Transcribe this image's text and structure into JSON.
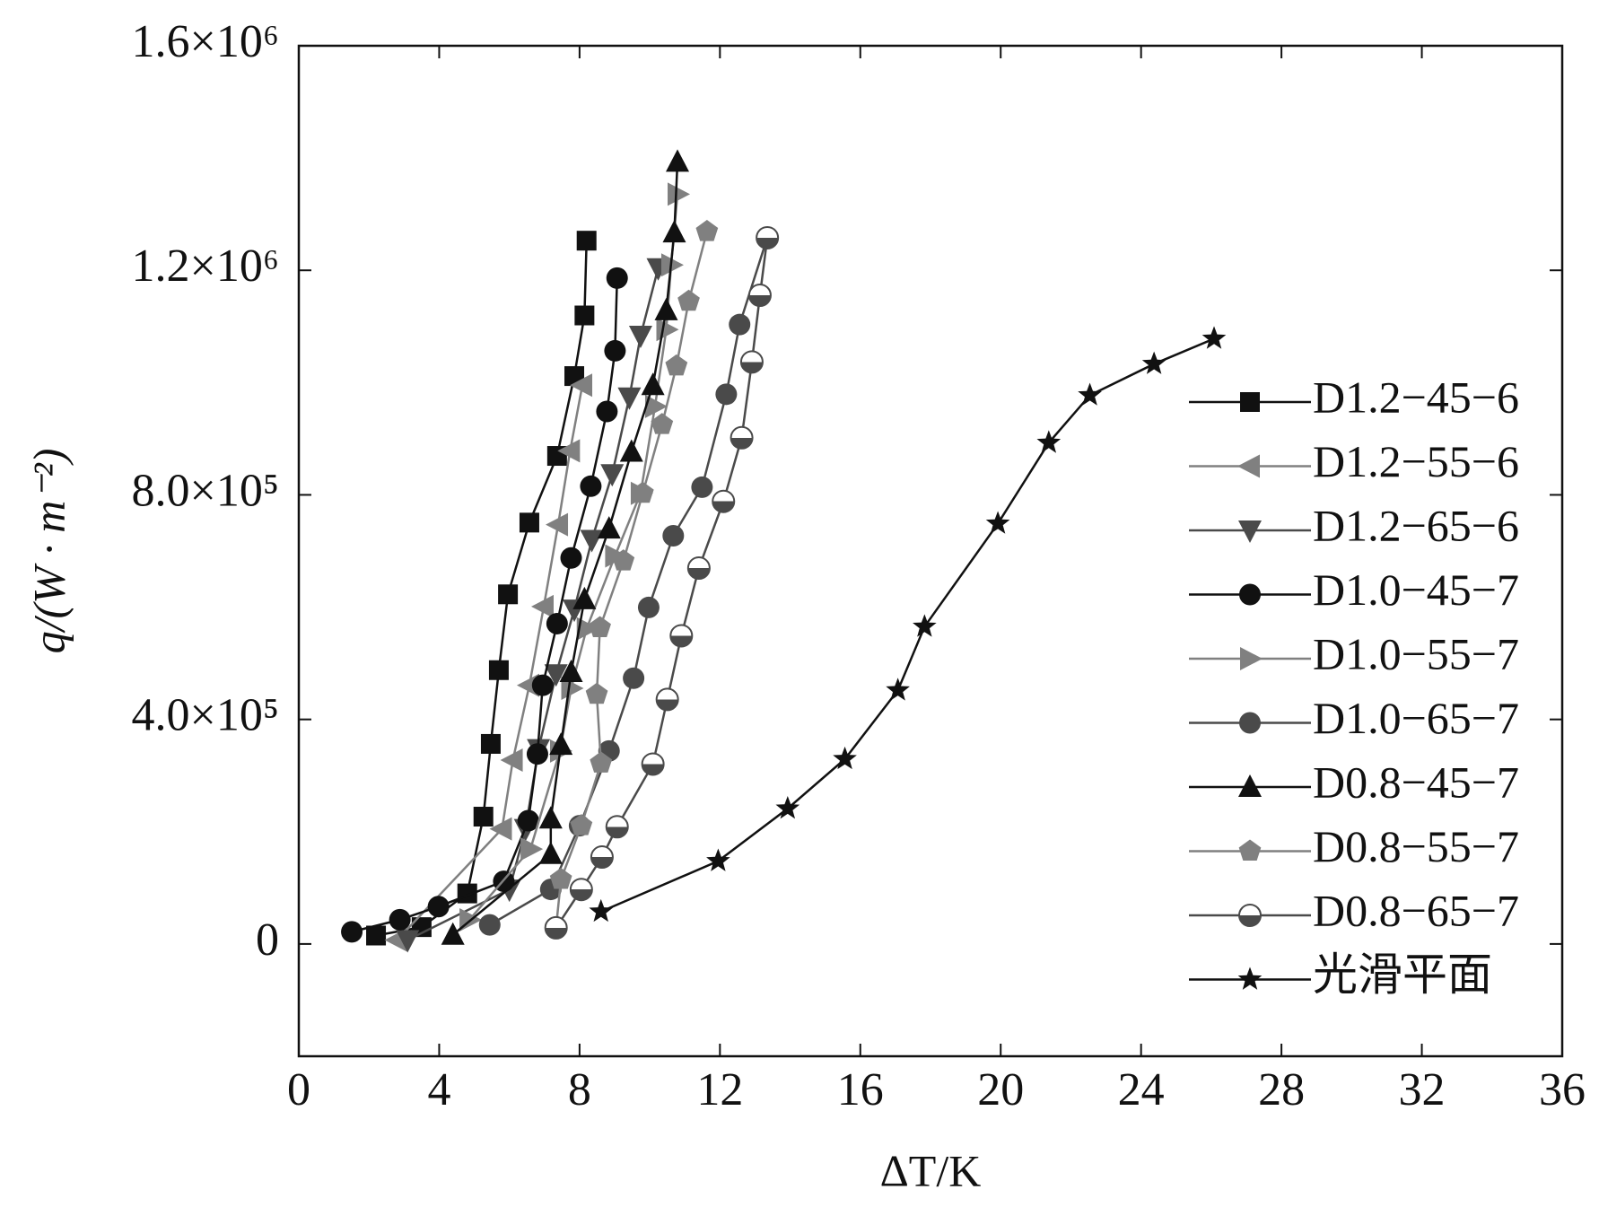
{
  "chart_data": {
    "type": "line",
    "x_label": "ΔT/K",
    "y_label": "q/(W · m⁻²)",
    "xlim": [
      0,
      36
    ],
    "xticks": [
      0,
      4,
      8,
      12,
      16,
      20,
      24,
      28,
      32,
      36
    ],
    "ylim": [
      -200000,
      1600000
    ],
    "yticks": [
      0,
      {
        "value": 400000,
        "label": "4.0×10⁵"
      },
      {
        "value": 800000,
        "label": "8.0×10⁵"
      },
      {
        "value": 1200000,
        "label": "1.2×10⁶"
      },
      {
        "value": 1600000,
        "label": "1.6×10⁶"
      }
    ],
    "legend": "right",
    "series": [
      {
        "name": "D1.2−45−6",
        "color": "#111111",
        "marker": "square",
        "x": [
          2.2,
          3.5,
          4.8,
          5.26,
          5.47,
          5.7,
          5.96,
          6.57,
          7.36,
          7.85,
          8.14,
          8.2
        ],
        "values": [
          15000,
          30000,
          90000,
          226800,
          356400,
          487800,
          622800,
          750600,
          869400,
          1011600,
          1119600,
          1252800
        ]
      },
      {
        "name": "D1.2−55−6",
        "color": "#808080",
        "marker": "left",
        "x": [
          2.8,
          5.79,
          6.1,
          6.57,
          6.98,
          7.39,
          7.73,
          8.08
        ],
        "values": [
          7000,
          205000,
          327600,
          460800,
          601000,
          747000,
          878400,
          995400
        ]
      },
      {
        "name": "D1.2−65−6",
        "color": "#4a4a4a",
        "marker": "down",
        "x": [
          3.1,
          6.0,
          6.46,
          6.83,
          7.33,
          7.85,
          8.35,
          8.93,
          9.42,
          9.74,
          10.24
        ],
        "values": [
          7000,
          97200,
          205000,
          347400,
          480600,
          595800,
          720000,
          837000,
          973800,
          1083600,
          1204000
        ]
      },
      {
        "name": "D1.0−45−7",
        "color": "#111111",
        "marker": "circle",
        "x": [
          1.51,
          2.88,
          3.98,
          5.84,
          6.54,
          6.8,
          6.95,
          7.36,
          7.76,
          8.32,
          8.78,
          9.01,
          9.07
        ],
        "values": [
          21600,
          43200,
          66600,
          111600,
          219600,
          338400,
          460800,
          570600,
          687600,
          815400,
          948600,
          1056600,
          1186200
        ]
      },
      {
        "name": "D1.0−55−7",
        "color": "#808080",
        "marker": "right",
        "x": [
          4.86,
          6.6,
          7.44,
          7.76,
          8.2,
          9.01,
          9.74,
          10.15,
          10.47,
          10.61,
          10.79
        ],
        "values": [
          43000,
          169000,
          343800,
          455400,
          561600,
          691200,
          802800,
          957600,
          1094400,
          1209600,
          1335600
        ]
      },
      {
        "name": "D1.0−65−7",
        "color": "#4a4a4a",
        "marker": "circle",
        "x": [
          5.44,
          7.18,
          8.0,
          8.84,
          9.54,
          9.97,
          10.67,
          11.49,
          12.18,
          12.56,
          13.35
        ],
        "values": [
          34000,
          97200,
          210600,
          343800,
          473400,
          599400,
          727200,
          813600,
          979200,
          1103400,
          1258200
        ]
      },
      {
        "name": "D0.8−45−7",
        "color": "#111111",
        "marker": "up",
        "x": [
          4.39,
          7.18,
          7.18,
          7.47,
          7.76,
          8.14,
          8.84,
          9.48,
          10.09,
          10.47,
          10.7,
          10.79
        ],
        "values": [
          16200,
          160000,
          223200,
          354600,
          484200,
          613800,
          739800,
          876600,
          995400,
          1128600,
          1267200,
          1393200
        ]
      },
      {
        "name": "D0.8−55−7",
        "color": "#808080",
        "marker": "pentagon",
        "x": [
          7.33,
          7.47,
          8.05,
          8.61,
          8.49,
          8.58,
          9.25,
          9.8,
          10.35,
          10.76,
          11.11,
          11.63
        ],
        "values": [
          28800,
          115000,
          210600,
          322200,
          444600,
          563400,
          682200,
          802800,
          925200,
          1029600,
          1144800,
          1269000
        ]
      },
      {
        "name": "D0.8−65−7",
        "color": "#4a4a4a",
        "marker": "half",
        "x": [
          7.33,
          8.05,
          8.64,
          9.07,
          10.09,
          10.5,
          10.9,
          11.4,
          12.1,
          12.62,
          12.91,
          13.14,
          13.35
        ],
        "values": [
          28800,
          97000,
          154800,
          208800,
          320400,
          435600,
          549000,
          669600,
          788400,
          901800,
          1036800,
          1155600,
          1258000
        ]
      },
      {
        "name": "光滑平面",
        "color": "#111111",
        "marker": "star",
        "x": [
          8.61,
          11.95,
          13.93,
          15.56,
          17.07,
          17.83,
          19.92,
          21.37,
          22.54,
          24.37,
          26.08
        ],
        "values": [
          57600,
          147600,
          241200,
          329400,
          451800,
          565200,
          748800,
          892800,
          977400,
          1033200,
          1078200
        ]
      }
    ]
  }
}
